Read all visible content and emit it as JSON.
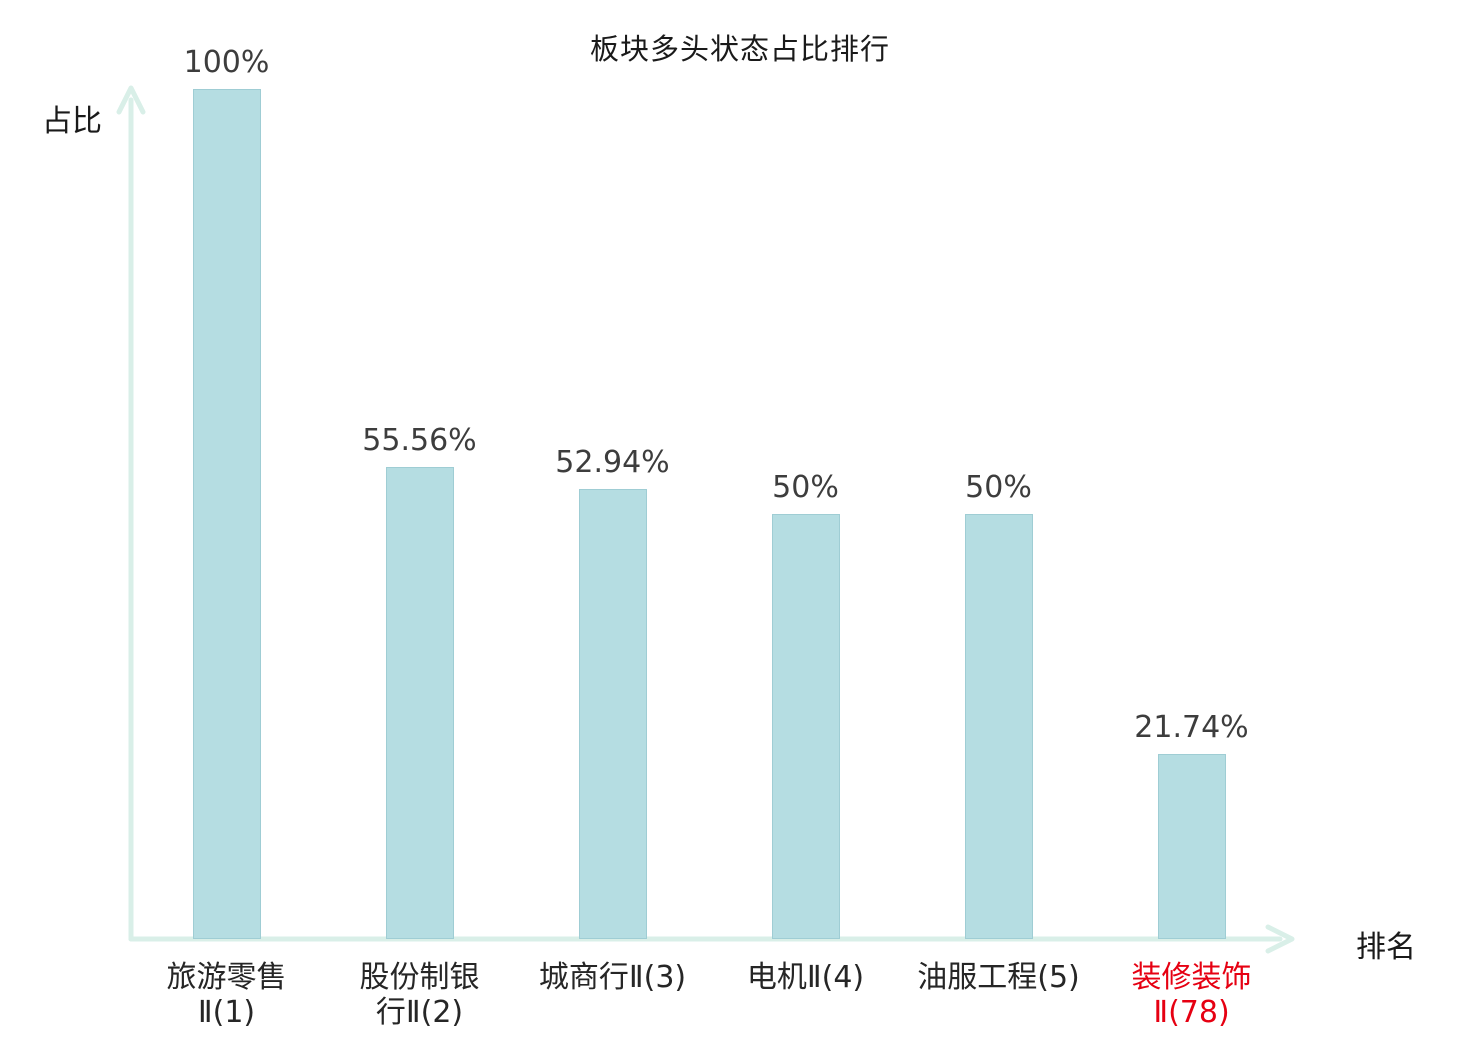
{
  "chart_data": {
    "type": "bar",
    "title": "板块多头状态占比排行",
    "xlabel": "排名",
    "ylabel": "占比",
    "ylim": [
      0,
      100
    ],
    "categories": [
      "旅游零售Ⅱ(1)",
      "股份制银行Ⅱ(2)",
      "城商行Ⅱ(3)",
      "电机Ⅱ(4)",
      "油服工程(5)",
      "装修装饰Ⅱ(78)"
    ],
    "category_lines": [
      [
        "旅游零售",
        "Ⅱ(1)"
      ],
      [
        "股份制银",
        "行Ⅱ(2)"
      ],
      [
        "城商行Ⅱ(3)"
      ],
      [
        "电机Ⅱ(4)"
      ],
      [
        "油服工程(5)"
      ],
      [
        "装修装饰",
        "Ⅱ(78)"
      ]
    ],
    "values": [
      100,
      55.56,
      52.94,
      50,
      50,
      21.74
    ],
    "value_labels": [
      "100%",
      "55.56%",
      "52.94%",
      "50%",
      "50%",
      "21.74%"
    ],
    "highlight_index": 5,
    "legend": "none",
    "grid": "off",
    "colors": {
      "bar_fill": "#b5dde2",
      "bar_border": "#9fcdd4",
      "axis": "#d9efe8",
      "value_label": "#3d3d3d",
      "category_label": "#262626",
      "highlight_label": "#e60012",
      "title": "#1a1a1a"
    }
  }
}
